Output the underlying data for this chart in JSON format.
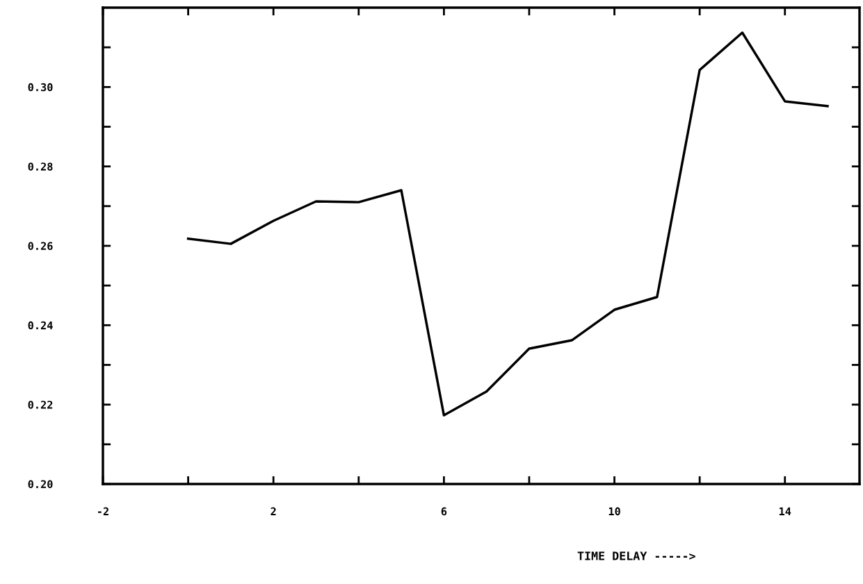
{
  "chart_data": {
    "type": "line",
    "xlabel": "TIME DELAY ----->",
    "x": [
      0,
      1,
      2,
      3,
      4,
      5,
      6,
      7,
      8,
      9,
      10,
      11,
      12,
      13,
      14,
      15
    ],
    "series": [
      {
        "color": "#000000",
        "values": [
          0.2618,
          0.2605,
          0.2663,
          0.2712,
          0.271,
          0.274,
          0.2173,
          0.2233,
          0.2341,
          0.2362,
          0.2439,
          0.2471,
          0.3043,
          0.3137,
          0.2964,
          0.2952
        ]
      }
    ],
    "xlim": [
      -2,
      15.75
    ],
    "xticks": [
      -2,
      {
        "value": 0,
        "label": null
      },
      2,
      {
        "value": 4,
        "label": null
      },
      6,
      {
        "value": 8,
        "label": null
      },
      10,
      {
        "value": 12,
        "label": null
      },
      14
    ],
    "ylim": [
      0.2,
      0.32
    ],
    "yticks": [
      {
        "value": 0.2,
        "label": "0.20"
      },
      {
        "value": 0.21,
        "label": null
      },
      {
        "value": 0.22,
        "label": "0.22"
      },
      {
        "value": 0.23,
        "label": null
      },
      {
        "value": 0.24,
        "label": "0.24"
      },
      {
        "value": 0.25,
        "label": null
      },
      {
        "value": 0.26,
        "label": "0.26"
      },
      {
        "value": 0.27,
        "label": null
      },
      {
        "value": 0.28,
        "label": "0.28"
      },
      {
        "value": 0.29,
        "label": null
      },
      {
        "value": 0.3,
        "label": "0.30"
      },
      {
        "value": 0.31,
        "label": null
      }
    ],
    "grid": false,
    "legend": false,
    "marker": "none",
    "line_style": "solid"
  }
}
